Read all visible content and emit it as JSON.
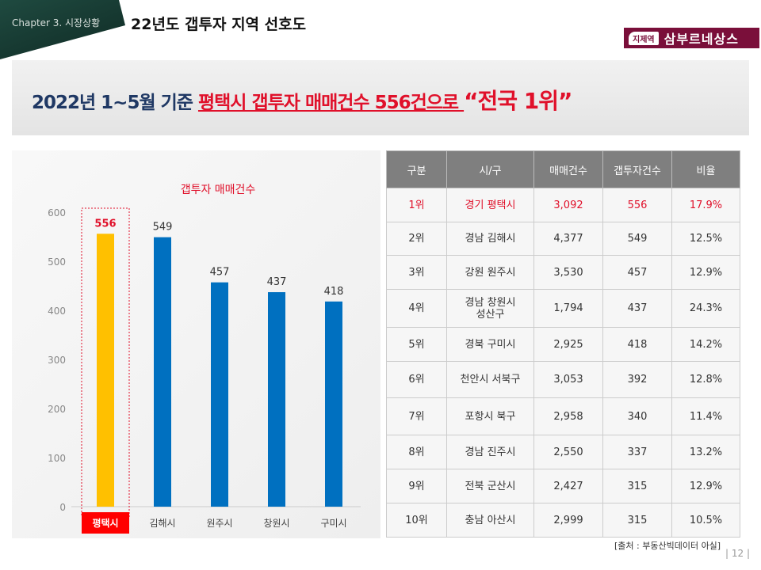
{
  "header": {
    "chapter": "Chapter 3. 시장상황",
    "title": "22년도 갭투자 지역 선호도",
    "logo_tag": "지제역",
    "logo_name": "삼부르네상스"
  },
  "headline": {
    "prefix": "2022년 1~5월 기준 ",
    "highlight": "평택시 갭투자 매매건수 556건으로 ",
    "quote": "“전국 1위”"
  },
  "chart_data": {
    "type": "bar",
    "title": "갭투자 매매건수",
    "categories": [
      "평택시",
      "김해시",
      "원주시",
      "창원시",
      "구미시"
    ],
    "values": [
      556,
      549,
      457,
      437,
      418
    ],
    "ylim": [
      0,
      600
    ],
    "yticks": [
      0,
      100,
      200,
      300,
      400,
      500,
      600
    ],
    "colors": {
      "highlight": "#FFC000",
      "default": "#0070C0"
    },
    "highlight_index": 0
  },
  "table": {
    "headers": [
      "구분",
      "시/구",
      "매매건수",
      "갭투자건수",
      "비율"
    ],
    "rows": [
      [
        "1위",
        "경기 평택시",
        "3,092",
        "556",
        "17.9%"
      ],
      [
        "2위",
        "경남 김해시",
        "4,377",
        "549",
        "12.5%"
      ],
      [
        "3위",
        "강원 원주시",
        "3,530",
        "457",
        "12.9%"
      ],
      [
        "4위",
        "경남 창원시\n성산구",
        "1,794",
        "437",
        "24.3%"
      ],
      [
        "5위",
        "경북 구미시",
        "2,925",
        "418",
        "14.2%"
      ],
      [
        "6위",
        "천안시 서북구",
        "3,053",
        "392",
        "12.8%"
      ],
      [
        "7위",
        "포항시 북구",
        "2,958",
        "340",
        "11.4%"
      ],
      [
        "8위",
        "경남 진주시",
        "2,550",
        "337",
        "13.2%"
      ],
      [
        "9위",
        "전북 군산시",
        "2,427",
        "315",
        "12.9%"
      ],
      [
        "10위",
        "충남 아산시",
        "2,999",
        "315",
        "10.5%"
      ]
    ]
  },
  "source": "[출처 : 부동산빅데이터 아실]",
  "page": "| 12 |"
}
